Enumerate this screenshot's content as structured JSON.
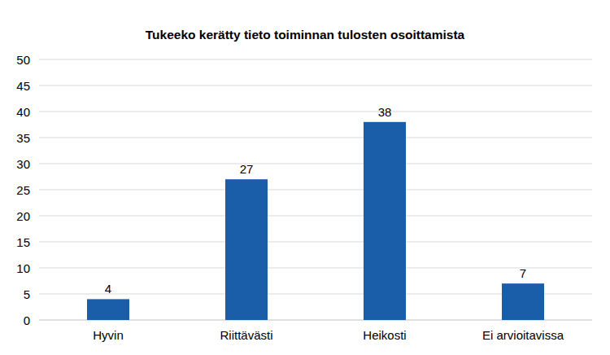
{
  "chart_data": {
    "type": "bar",
    "title": "Tukeeko kerätty tieto toiminnan tulosten osoittamista",
    "categories": [
      "Hyvin",
      "Riittävästi",
      "Heikosti",
      "Ei arvioitavissa"
    ],
    "values": [
      4,
      27,
      38,
      7
    ],
    "color": "#1a5ea9",
    "ylim": [
      0,
      50
    ],
    "yticks": [
      0,
      5,
      10,
      15,
      20,
      25,
      30,
      35,
      40,
      45,
      50
    ],
    "grid": true,
    "data_labels": true
  }
}
